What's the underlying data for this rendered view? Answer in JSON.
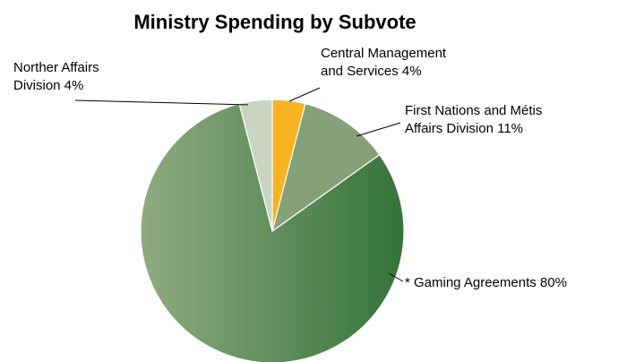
{
  "chart_data": {
    "type": "pie",
    "title": "Ministry Spending by Subvote",
    "slices": [
      {
        "name": "Central Management and Services",
        "label_lines": [
          "Central Management",
          "and Services 4%"
        ],
        "value": 4,
        "color": "#f8b323"
      },
      {
        "name": "First Nations and Métis Affairs Division",
        "label_lines": [
          "First Nations and Métis",
          "Affairs Division 11%"
        ],
        "value": 11,
        "color": "#85a177"
      },
      {
        "name": "* Gaming Agreements",
        "label_lines": [
          "* Gaming Agreements 80%"
        ],
        "value": 80,
        "color": "#3a773c"
      },
      {
        "name": "Norther Affairs Division",
        "label_lines": [
          "Norther Affairs",
          "Division 4%"
        ],
        "value": 4,
        "color": "#c9d5c2"
      }
    ]
  }
}
